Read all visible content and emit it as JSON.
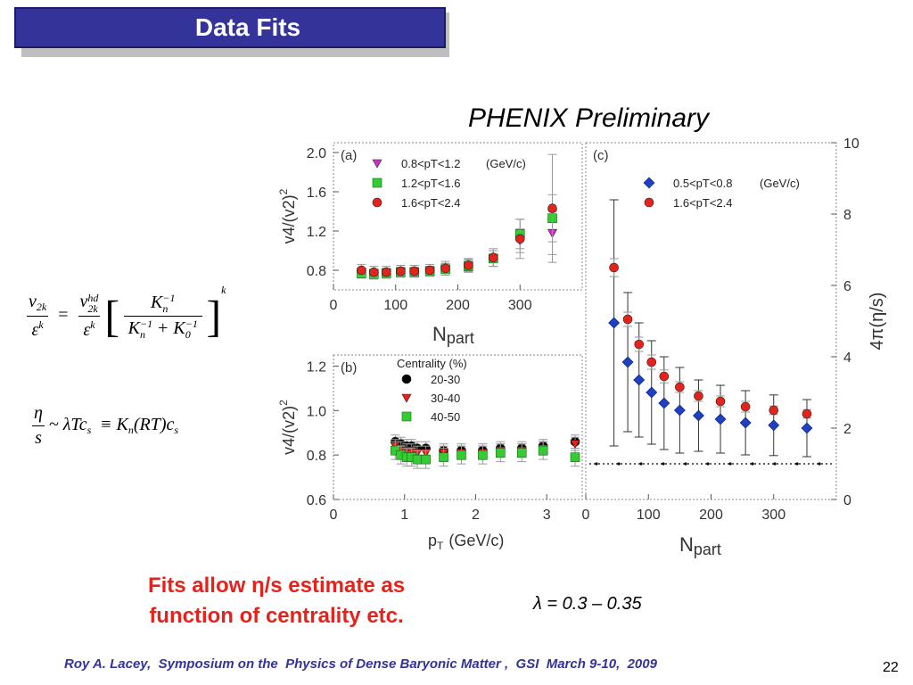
{
  "slide": {
    "title": "Data Fits",
    "subtitle": "PHENIX Preliminary",
    "fits_text_line1": "Fits allow η/s  estimate as",
    "fits_text_line2": "function of centrality etc.",
    "lambda_text": "λ = 0.3 – 0.35",
    "footer": "Roy A. Lacey,  Symposium on the  Physics of Dense Baryonic Matter ,  GSI  March 9-10,  2009",
    "page_number": "22"
  },
  "equations": {
    "eq1": {
      "lhs_num": "v",
      "lhs_num_sub": "2k",
      "lhs_den": "ε",
      "lhs_den_sup": "k",
      "equals": "=",
      "rhs_num": "v",
      "rhs_num_sup": "hd",
      "rhs_num_sub": "2k",
      "rhs_den": "ε",
      "rhs_den_sup": "k",
      "k_num": "K",
      "k_num_sub": "n",
      "k_num_sup": "−1",
      "k_den_a": "K",
      "k_den_a_sub": "n",
      "k_den_a_sup": "−1",
      "k_den_plus": "+",
      "k_den_b": "K",
      "k_den_b_sub": "0",
      "k_den_b_sup": "−1",
      "outer_sup": "k"
    },
    "eq2": {
      "num": "η",
      "den": "s",
      "rhs": "~ λTc",
      "rhs_sub": "s",
      "equiv": "≡",
      "k": "K",
      "k_sub": "n",
      "rt": "(RT)c",
      "c_sub": "s"
    }
  },
  "colors": {
    "title_bg": "#333399",
    "fits_text": "#e3231c",
    "footer_text": "#333399",
    "black_marker": "#000000",
    "red_marker": "#e3231c",
    "green_marker": "#33cc33",
    "magenta_marker": "#cc33cc",
    "blue_marker": "#1f3fc4"
  },
  "chart_data": [
    {
      "id": "a",
      "type": "scatter",
      "panel_label": "(a)",
      "xlabel": "N",
      "xlabel_sub": "part",
      "ylabel": "v4/(v2)2",
      "xlim": [
        0,
        400
      ],
      "ylim": [
        0.6,
        2.1
      ],
      "xticks": [
        "0",
        "100",
        "200",
        "300"
      ],
      "xtick_values": [
        0,
        100,
        200,
        300
      ],
      "yticks": [
        "0.8",
        "1.2",
        "1.6",
        "2.0"
      ],
      "ytick_values": [
        0.8,
        1.2,
        1.6,
        2.0
      ],
      "legend_unit": "(GeV/c)",
      "series": [
        {
          "name": "0.8<pT<1.2",
          "marker": "triangle-down",
          "color": "#cc33cc",
          "x": [
            45,
            65,
            85,
            108,
            130,
            155,
            180,
            217,
            257,
            300,
            352
          ],
          "y": [
            0.78,
            0.77,
            0.77,
            0.78,
            0.78,
            0.79,
            0.82,
            0.85,
            0.92,
            1.1,
            1.18
          ],
          "err": [
            0.04,
            0.04,
            0.04,
            0.04,
            0.04,
            0.05,
            0.05,
            0.06,
            0.08,
            0.12,
            0.22
          ]
        },
        {
          "name": "1.2<pT<1.6",
          "marker": "square",
          "color": "#33cc33",
          "x": [
            45,
            65,
            85,
            108,
            130,
            155,
            180,
            217,
            257,
            300,
            352
          ],
          "y": [
            0.77,
            0.76,
            0.77,
            0.78,
            0.78,
            0.79,
            0.81,
            0.84,
            0.92,
            1.17,
            1.33
          ],
          "err": [
            0.05,
            0.05,
            0.05,
            0.05,
            0.05,
            0.05,
            0.06,
            0.06,
            0.08,
            0.15,
            0.24
          ]
        },
        {
          "name": "1.6<pT<2.4",
          "marker": "circle",
          "color": "#e3231c",
          "x": [
            45,
            65,
            85,
            108,
            130,
            155,
            180,
            217,
            257,
            300,
            352
          ],
          "y": [
            0.8,
            0.78,
            0.78,
            0.79,
            0.79,
            0.8,
            0.82,
            0.85,
            0.93,
            1.12,
            1.43
          ],
          "err": [
            0.06,
            0.06,
            0.06,
            0.06,
            0.06,
            0.06,
            0.07,
            0.07,
            0.09,
            0.2,
            0.55
          ]
        }
      ]
    },
    {
      "id": "b",
      "type": "scatter",
      "panel_label": "(b)",
      "legend_title": "Centrality (%)",
      "xlabel": "p",
      "xlabel_sub": "T",
      "xlabel_unit": "(GeV/c)",
      "ylabel": "v4/(v2)2",
      "xlim": [
        0,
        3.5
      ],
      "ylim": [
        0.6,
        1.25
      ],
      "xticks": [
        "0",
        "1",
        "2",
        "3"
      ],
      "xtick_values": [
        0,
        1,
        2,
        3
      ],
      "yticks": [
        "0.6",
        "0.8",
        "1.0",
        "1.2"
      ],
      "ytick_values": [
        0.6,
        0.8,
        1.0,
        1.2
      ],
      "series": [
        {
          "name": "20-30",
          "marker": "circle",
          "color": "#000000",
          "x": [
            0.87,
            0.95,
            1.03,
            1.1,
            1.18,
            1.3,
            1.55,
            1.8,
            2.1,
            2.35,
            2.65,
            2.95,
            3.4
          ],
          "y": [
            0.86,
            0.85,
            0.84,
            0.84,
            0.83,
            0.83,
            0.82,
            0.82,
            0.82,
            0.83,
            0.83,
            0.84,
            0.86
          ],
          "err": [
            0.03,
            0.03,
            0.03,
            0.03,
            0.03,
            0.03,
            0.03,
            0.03,
            0.03,
            0.03,
            0.03,
            0.03,
            0.03
          ]
        },
        {
          "name": "30-40",
          "marker": "triangle-down",
          "color": "#e3231c",
          "x": [
            0.87,
            0.95,
            1.03,
            1.1,
            1.18,
            1.3,
            1.55,
            1.8,
            2.1,
            2.35,
            2.65,
            2.95,
            3.4
          ],
          "y": [
            0.84,
            0.83,
            0.82,
            0.82,
            0.81,
            0.81,
            0.81,
            0.81,
            0.81,
            0.82,
            0.82,
            0.83,
            0.85
          ],
          "err": [
            0.03,
            0.03,
            0.03,
            0.03,
            0.03,
            0.03,
            0.03,
            0.03,
            0.03,
            0.03,
            0.03,
            0.03,
            0.03
          ]
        },
        {
          "name": "40-50",
          "marker": "square",
          "color": "#33cc33",
          "x": [
            0.87,
            0.95,
            1.03,
            1.1,
            1.18,
            1.3,
            1.55,
            1.8,
            2.1,
            2.35,
            2.65,
            2.95,
            3.4
          ],
          "y": [
            0.82,
            0.8,
            0.79,
            0.79,
            0.78,
            0.78,
            0.79,
            0.8,
            0.8,
            0.81,
            0.81,
            0.82,
            0.79
          ],
          "err": [
            0.04,
            0.04,
            0.04,
            0.04,
            0.04,
            0.04,
            0.04,
            0.04,
            0.04,
            0.04,
            0.04,
            0.04,
            0.04
          ]
        }
      ]
    },
    {
      "id": "c",
      "type": "scatter",
      "panel_label": "(c)",
      "xlabel": "N",
      "xlabel_sub": "part",
      "ylabel": "4π(η/s)",
      "xlim": [
        0,
        400
      ],
      "ylim": [
        0,
        10
      ],
      "xticks": [
        "0",
        "100",
        "200",
        "300"
      ],
      "xtick_values": [
        0,
        100,
        200,
        300
      ],
      "yticks": [
        "0",
        "2",
        "4",
        "6",
        "8",
        "10"
      ],
      "ytick_values": [
        0,
        2,
        4,
        6,
        8,
        10
      ],
      "legend_unit": "(GeV/c)",
      "baseline": 1.0,
      "series": [
        {
          "name": "0.5<pT<0.8",
          "marker": "diamond",
          "color": "#1f3fc4",
          "x": [
            45,
            67,
            85,
            105,
            125,
            150,
            180,
            215,
            255,
            300,
            353
          ],
          "y": [
            4.95,
            3.85,
            3.35,
            3.0,
            2.7,
            2.5,
            2.35,
            2.25,
            2.15,
            2.08,
            2.0
          ],
          "err": [
            3.45,
            1.95,
            1.6,
            1.45,
            1.3,
            1.2,
            1.0,
            0.95,
            0.9,
            0.85,
            0.8
          ]
        },
        {
          "name": "1.6<pT<2.4",
          "marker": "circle",
          "color": "#e3231c",
          "x": [
            45,
            67,
            85,
            105,
            125,
            150,
            180,
            215,
            255,
            300,
            353
          ],
          "y": [
            6.5,
            5.05,
            4.35,
            3.85,
            3.45,
            3.15,
            2.9,
            2.75,
            2.6,
            2.5,
            2.4
          ],
          "err": [
            0.25,
            0.2,
            0.2,
            0.2,
            0.18,
            0.15,
            0.15,
            0.15,
            0.15,
            0.12,
            0.12
          ]
        }
      ]
    }
  ]
}
